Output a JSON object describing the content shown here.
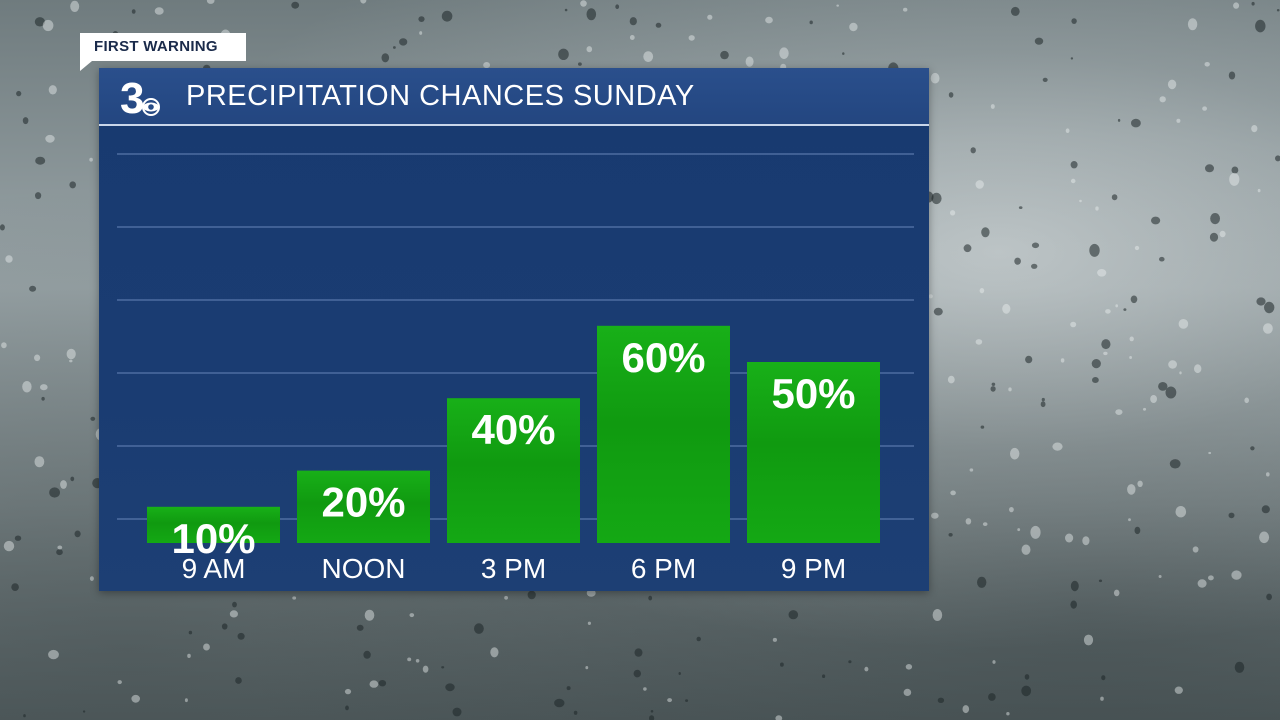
{
  "header": {
    "tag_label": "FIRST WARNING",
    "title": "PRECIPITATION CHANCES SUNDAY",
    "logo_icon": "channel-3-cbs-logo"
  },
  "colors": {
    "panel": "#1a3c72",
    "title_bar": "#264b86",
    "bar": "#13a313",
    "text": "#ffffff"
  },
  "chart_data": {
    "type": "bar",
    "title": "PRECIPITATION CHANCES SUNDAY",
    "categories": [
      "9 AM",
      "NOON",
      "3 PM",
      "6 PM",
      "9 PM"
    ],
    "values": [
      10,
      20,
      40,
      60,
      50
    ],
    "data_labels": [
      "10%",
      "20%",
      "40%",
      "60%",
      "50%"
    ],
    "xlabel": "",
    "ylabel": "",
    "ylim": [
      0,
      100
    ],
    "grid": true,
    "legend": "none"
  }
}
